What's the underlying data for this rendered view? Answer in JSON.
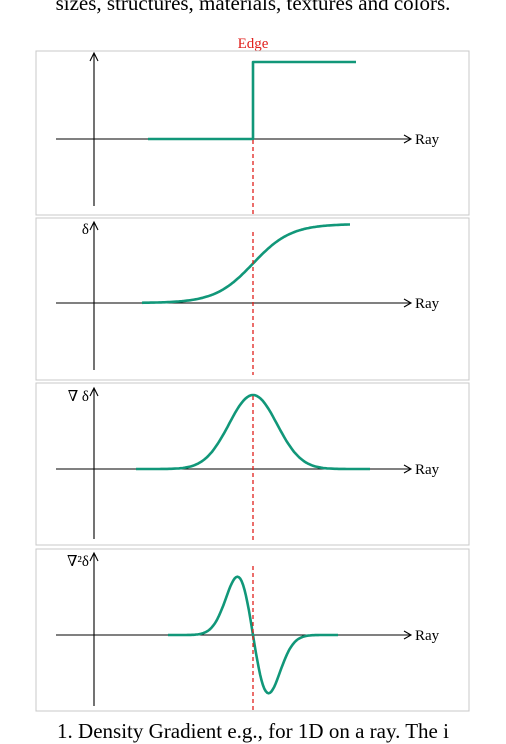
{
  "header_text": "sizes, structures, materials, textures and colors.",
  "caption_text": "1. Density Gradient e.g., for 1D on a ray. The i",
  "diagram": {
    "edge_label": "Edge",
    "panels": [
      {
        "id": "step",
        "y_label": "",
        "x_label": "Ray"
      },
      {
        "id": "density",
        "y_label": "δ",
        "x_label": "Ray"
      },
      {
        "id": "gradient",
        "y_label": "∇ δ",
        "x_label": "Ray"
      },
      {
        "id": "second-derivative",
        "y_label": "∇²δ",
        "x_label": "Ray"
      }
    ]
  },
  "colors": {
    "curve": "#119779",
    "edge": "#e0201c",
    "frame": "#c8c8c8"
  }
}
